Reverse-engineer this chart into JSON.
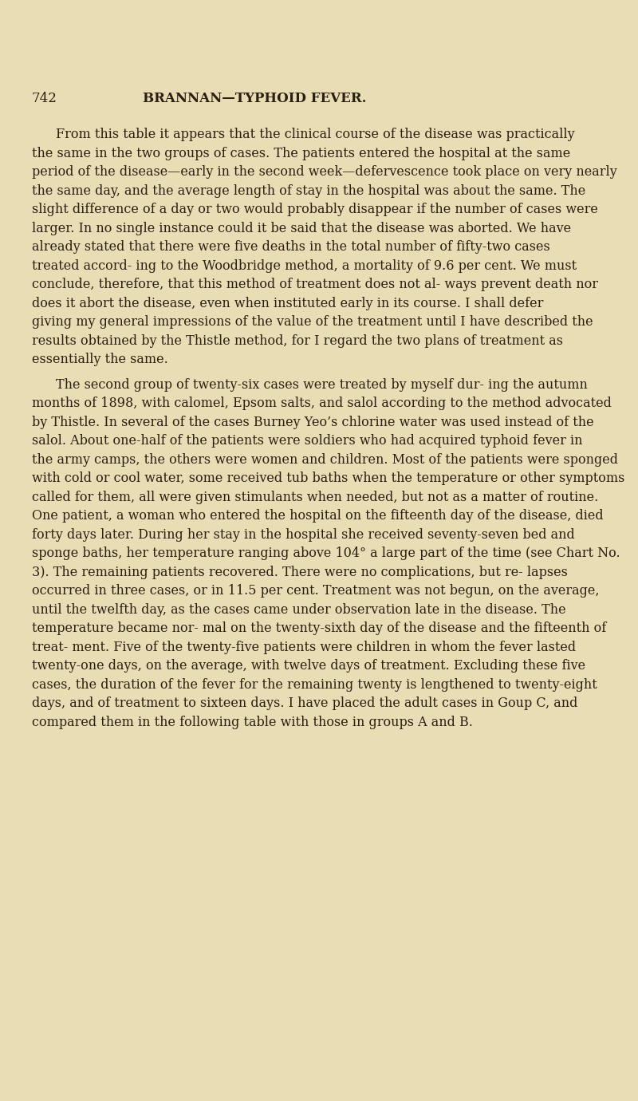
{
  "background_color": "#e8ddb5",
  "page_number": "742",
  "header": "BRANNAN—TYPHOID FEVER.",
  "text_color": "#2a2010",
  "font_size_body": 11.5,
  "font_size_header": 12,
  "paragraphs": [
    "From this table it appears that the clinical course of the disease was practically the same in the two groups of cases.  The patients entered the hospital at the same period of the disease—early in the second week—defervescence took place on very nearly the same day, and the average length of stay in the hospital was about the same. The slight difference of a day or two would probably disappear if the number of cases were larger.  In no single instance could it be said that the disease was aborted.  We have already stated that there were five deaths in the total number of fifty-two cases treated accord- ing to the Woodbridge method, a mortality of 9.6 per cent.  We must conclude, therefore, that this method of treatment does not al- ways prevent death nor does it abort the disease, even when instituted early in its course.  I shall defer giving my general impressions of the value of the treatment until I have described the results obtained by the Thistle method, for I regard the two plans of treatment as essentially the same.",
    "The second group of twenty-six cases were treated by myself dur- ing the autumn months of 1898, with calomel, Epsom salts, and salol according to the method advocated by Thistle.  In several of the cases Burney Yeo’s chlorine water was used instead of the salol. About one-half of the patients were soldiers who had acquired typhoid fever in the army camps, the others were women and children.  Most of the patients were sponged with cold or cool water, some received tub baths when the temperature or other symptoms called for them, all were given stimulants when needed, but not as a matter of routine. One patient, a woman who entered the hospital on the fifteenth day of the disease, died forty days later.  During her stay in the hospital she received seventy-seven bed and sponge baths, her temperature ranging above 104° a large part of the time (see Chart No. 3).  The remaining patients recovered.  There were no complications, but re- lapses occurred in three cases, or in 11.5 per cent.  Treatment was not begun, on the average, until the twelfth day, as the cases came under observation late in the disease.  The temperature became nor- mal on the twenty-sixth day of the disease and the fifteenth of treat- ment.  Five of the twenty-five patients were children in whom the fever lasted twenty-one days, on the average, with twelve days of treatment.  Excluding these five cases, the duration of the fever for the remaining twenty is lengthened to twenty-eight days, and of treatment to sixteen days.  I have placed the adult cases in Goup C, and compared them in the following table with those in groups A and B."
  ]
}
